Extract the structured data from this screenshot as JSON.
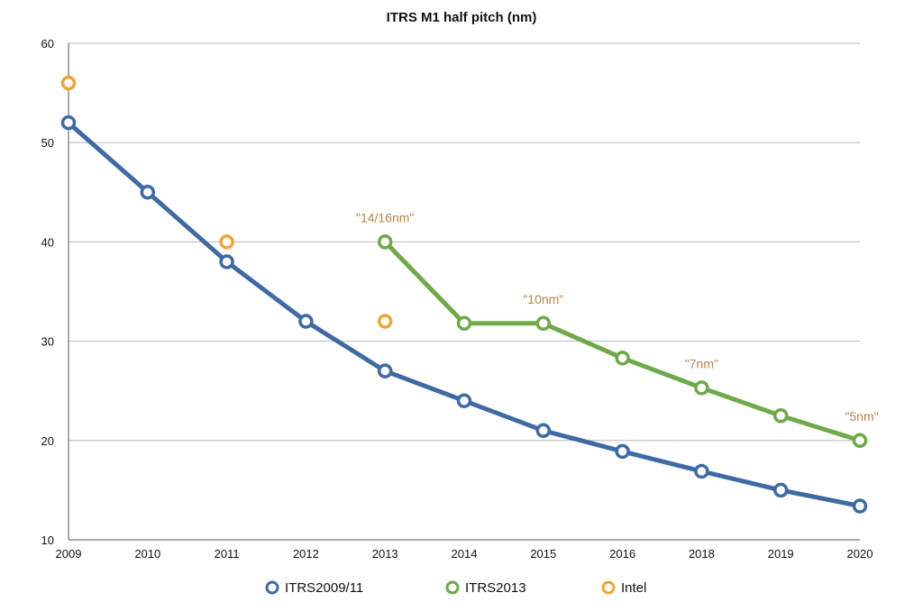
{
  "chart_data": {
    "type": "line",
    "title": "ITRS M1 half pitch (nm)",
    "categories": [
      "2009",
      "2010",
      "2011",
      "2012",
      "2013",
      "2014",
      "2015",
      "2016",
      "2018",
      "2019",
      "2020"
    ],
    "ylim": [
      10,
      60
    ],
    "yticks": [
      "10",
      "20",
      "30",
      "40",
      "50",
      "60"
    ],
    "grid": true,
    "legend_position": "bottom",
    "series": [
      {
        "name": "ITRS2009/11",
        "color": "#3f6aa3",
        "values": [
          52,
          45,
          38,
          32,
          27,
          24,
          21,
          18.9,
          16.9,
          15,
          13.4
        ]
      },
      {
        "name": "ITRS2013",
        "color": "#6ea94a",
        "values": [
          null,
          null,
          null,
          null,
          40,
          31.8,
          31.8,
          28.3,
          25.3,
          22.5,
          20
        ]
      },
      {
        "name": "Intel",
        "color": "#f0a43a",
        "markers_only": true,
        "values": [
          56,
          null,
          40,
          null,
          32,
          null,
          null,
          null,
          null,
          null,
          null
        ]
      }
    ],
    "annotations": [
      {
        "text": "\"14/16nm\"",
        "category": "2013",
        "value": 40
      },
      {
        "text": "\"10nm\"",
        "category": "2015",
        "value": 31.8
      },
      {
        "text": "\"7nm\"",
        "category": "2018",
        "value": 25.3
      },
      {
        "text": "\"5nm\"",
        "category": "2020",
        "value": 20
      }
    ],
    "annotation_color": "#b8834a"
  }
}
